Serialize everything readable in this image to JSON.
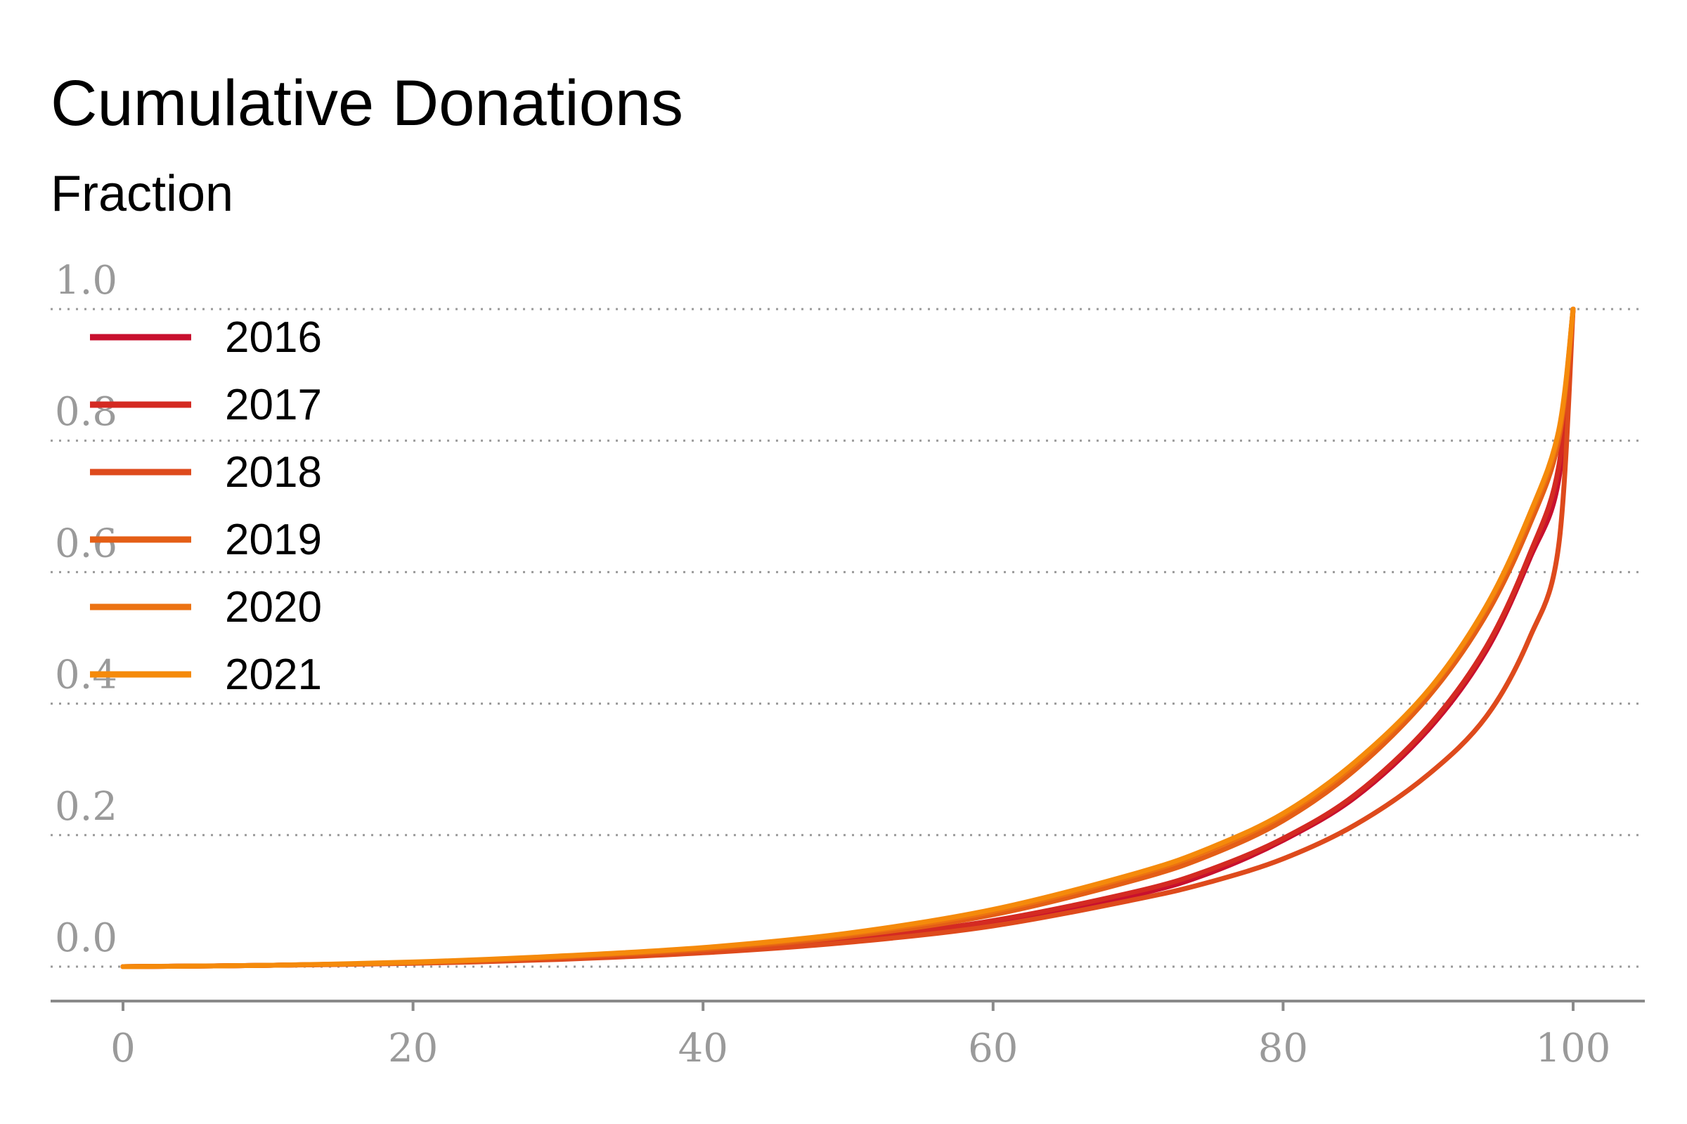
{
  "chart_data": {
    "type": "line",
    "title": "Cumulative Donations",
    "subtitle": "Fraction",
    "xlabel": "",
    "ylabel": "Fraction",
    "xlim": [
      0,
      100
    ],
    "ylim": [
      0.0,
      1.0
    ],
    "xticks": [
      0,
      20,
      40,
      60,
      80,
      100
    ],
    "yticks": [
      0.0,
      0.2,
      0.4,
      0.6,
      0.8,
      1.0
    ],
    "xtick_labels": [
      "0",
      "20",
      "40",
      "60",
      "80",
      "100"
    ],
    "ytick_labels": [
      "0.0",
      "0.2",
      "0.4",
      "0.6",
      "0.8",
      "1.0"
    ],
    "grid": "horizontal dotted",
    "legend_position": "top-left",
    "x": [
      0,
      10,
      20,
      30,
      40,
      50,
      60,
      70,
      75,
      80,
      85,
      90,
      94,
      97,
      99,
      100
    ],
    "series": [
      {
        "name": "2016",
        "color": "#c8102e",
        "values": [
          0.0,
          0.002,
          0.006,
          0.013,
          0.023,
          0.04,
          0.066,
          0.11,
          0.143,
          0.192,
          0.258,
          0.36,
          0.48,
          0.62,
          0.74,
          1.0
        ]
      },
      {
        "name": "2017",
        "color": "#d42a22",
        "values": [
          0.0,
          0.002,
          0.006,
          0.013,
          0.024,
          0.042,
          0.07,
          0.115,
          0.148,
          0.195,
          0.262,
          0.365,
          0.486,
          0.627,
          0.76,
          1.0
        ]
      },
      {
        "name": "2018",
        "color": "#de4a1c",
        "values": [
          0.0,
          0.002,
          0.005,
          0.011,
          0.021,
          0.037,
          0.062,
          0.103,
          0.129,
          0.164,
          0.216,
          0.292,
          0.38,
          0.5,
          0.64,
          1.0
        ]
      },
      {
        "name": "2019",
        "color": "#e45e16",
        "values": [
          0.0,
          0.002,
          0.006,
          0.014,
          0.026,
          0.046,
          0.079,
          0.133,
          0.17,
          0.222,
          0.3,
          0.41,
          0.535,
          0.672,
          0.8,
          1.0
        ]
      },
      {
        "name": "2020",
        "color": "#ec7212",
        "values": [
          0.0,
          0.002,
          0.006,
          0.015,
          0.028,
          0.049,
          0.084,
          0.14,
          0.178,
          0.23,
          0.308,
          0.418,
          0.545,
          0.683,
          0.81,
          1.0
        ]
      },
      {
        "name": "2021",
        "color": "#f58a0b",
        "values": [
          0.0,
          0.002,
          0.007,
          0.016,
          0.029,
          0.051,
          0.087,
          0.143,
          0.181,
          0.233,
          0.312,
          0.42,
          0.548,
          0.688,
          0.815,
          1.0
        ]
      }
    ]
  }
}
